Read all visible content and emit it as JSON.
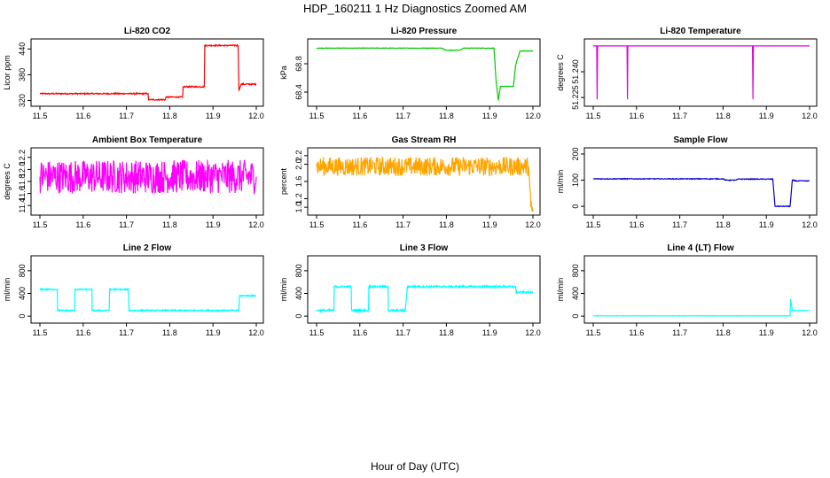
{
  "figure": {
    "title": "HDP_160211  1 Hz Diagnostics Zoomed AM",
    "xlabel": "Hour of Day (UTC)"
  },
  "chart_data": [
    {
      "type": "line",
      "title": "Li-820 CO2",
      "ylabel": "Licor ppm",
      "color": "#ff0000",
      "xlim": [
        11.5,
        12.0
      ],
      "ylim": [
        315,
        455
      ],
      "yticks": [
        "320",
        "380",
        "440"
      ],
      "xticks": [
        "11.5",
        "11.6",
        "11.7",
        "11.8",
        "11.9",
        "12.0"
      ],
      "series": [
        {
          "x": [
            11.5,
            11.75,
            11.751,
            11.79,
            11.791,
            11.83,
            11.831,
            11.88,
            11.881,
            11.958,
            11.96,
            11.965,
            12.0
          ],
          "y": [
            336,
            336,
            322,
            322,
            328,
            328,
            352,
            352,
            448,
            448,
            344,
            358,
            358
          ]
        }
      ],
      "noise": 1.5
    },
    {
      "type": "line",
      "title": "Li-820 Pressure",
      "ylabel": "kPa",
      "color": "#00cc00",
      "xlim": [
        11.5,
        12.0
      ],
      "ylim": [
        68.25,
        69.1
      ],
      "yticks": [
        "68.4",
        "68.8"
      ],
      "xticks": [
        "11.5",
        "11.6",
        "11.7",
        "11.8",
        "11.9",
        "12.0"
      ],
      "series": [
        {
          "x": [
            11.5,
            11.79,
            11.8,
            11.83,
            11.84,
            11.91,
            11.915,
            11.92,
            11.925,
            11.955,
            11.96,
            11.97,
            12.0
          ],
          "y": [
            69.02,
            69.02,
            68.99,
            68.99,
            69.02,
            69.02,
            68.55,
            68.28,
            68.48,
            68.48,
            68.78,
            68.98,
            68.98
          ]
        }
      ],
      "noise": 0.004
    },
    {
      "type": "line",
      "title": "Li-820 Temperature",
      "ylabel": "degrees C",
      "color": "#dd00dd",
      "xlim": [
        11.5,
        12.0
      ],
      "ylim": [
        51.222,
        51.257
      ],
      "yticks": [
        "51.225",
        "51.240"
      ],
      "xticks": [
        "11.5",
        "11.6",
        "11.7",
        "11.8",
        "11.9",
        "12.0"
      ],
      "series": [
        {
          "x": [
            11.5,
            11.508,
            11.509,
            11.51,
            11.578,
            11.579,
            11.58,
            11.868,
            11.869,
            11.87,
            12.0
          ],
          "y": [
            51.255,
            51.255,
            51.224,
            51.255,
            51.255,
            51.224,
            51.255,
            51.255,
            51.224,
            51.255,
            51.255
          ]
        }
      ],
      "noise": 0
    },
    {
      "type": "line",
      "title": "Ambient Box Temperature",
      "ylabel": "degrees C",
      "color": "#ff00ff",
      "xlim": [
        11.5,
        12.0
      ],
      "ylim": [
        11.3,
        12.3
      ],
      "yticks": [
        "11.4",
        "11.6",
        "11.8",
        "12.0",
        "12.2"
      ],
      "xticks": [
        "11.5",
        "11.6",
        "11.7",
        "11.8",
        "11.9",
        "12.0"
      ],
      "series": [
        {
          "x": [
            11.5,
            12.0
          ],
          "y": [
            11.88,
            11.88
          ]
        }
      ],
      "noise": 0.28
    },
    {
      "type": "line",
      "title": "Gas Stream RH",
      "ylabel": "percent",
      "color": "#ffa500",
      "xlim": [
        11.5,
        12.0
      ],
      "ylim": [
        0.9,
        2.3
      ],
      "yticks": [
        "1.0",
        "1.2",
        "1.6",
        "2.0",
        "2.2"
      ],
      "xticks": [
        "11.5",
        "11.6",
        "11.7",
        "11.8",
        "11.9",
        "12.0"
      ],
      "series": [
        {
          "x": [
            11.5,
            11.99,
            11.995,
            12.0
          ],
          "y": [
            1.95,
            1.95,
            1.0,
            0.9
          ]
        }
      ],
      "noise": 0.22
    },
    {
      "type": "line",
      "title": "Sample Flow",
      "ylabel": "ml/min",
      "color": "#0000cc",
      "xlim": [
        11.5,
        12.0
      ],
      "ylim": [
        -20,
        210
      ],
      "yticks": [
        "0",
        "100",
        "200"
      ],
      "xticks": [
        "11.5",
        "11.6",
        "11.7",
        "11.8",
        "11.9",
        "12.0"
      ],
      "series": [
        {
          "x": [
            11.5,
            11.8,
            11.805,
            11.83,
            11.835,
            11.915,
            11.92,
            11.955,
            11.96,
            11.97,
            12.0
          ],
          "y": [
            105,
            105,
            100,
            100,
            104,
            104,
            0,
            0,
            100,
            97,
            97
          ]
        }
      ],
      "noise": 1.5
    },
    {
      "type": "line",
      "title": "Line 2 Flow",
      "ylabel": "ml/min",
      "color": "#00ffff",
      "xlim": [
        11.5,
        12.0
      ],
      "ylim": [
        -60,
        1000
      ],
      "yticks": [
        "0",
        "400",
        "800"
      ],
      "xticks": [
        "11.5",
        "11.6",
        "11.7",
        "11.8",
        "11.9",
        "12.0"
      ],
      "series": [
        {
          "x": [
            11.5,
            11.54,
            11.541,
            11.58,
            11.581,
            11.62,
            11.621,
            11.66,
            11.661,
            11.705,
            11.706,
            11.96,
            11.961,
            12.0
          ],
          "y": [
            470,
            470,
            100,
            100,
            470,
            470,
            100,
            100,
            470,
            470,
            100,
            100,
            360,
            360
          ]
        }
      ],
      "noise": 12
    },
    {
      "type": "line",
      "title": "Line 3 Flow",
      "ylabel": "ml/min",
      "color": "#00ffff",
      "xlim": [
        11.5,
        12.0
      ],
      "ylim": [
        -60,
        1000
      ],
      "yticks": [
        "0",
        "400",
        "800"
      ],
      "xticks": [
        "11.5",
        "11.6",
        "11.7",
        "11.8",
        "11.9",
        "12.0"
      ],
      "series": [
        {
          "x": [
            11.5,
            11.54,
            11.541,
            11.58,
            11.581,
            11.62,
            11.621,
            11.665,
            11.666,
            11.705,
            11.71,
            11.96,
            11.961,
            12.0
          ],
          "y": [
            100,
            100,
            520,
            520,
            100,
            100,
            520,
            520,
            100,
            100,
            520,
            520,
            420,
            420
          ]
        }
      ],
      "noise": 18
    },
    {
      "type": "line",
      "title": "Line 4 (LT) Flow",
      "ylabel": "ml/min",
      "color": "#00ffff",
      "xlim": [
        11.5,
        12.0
      ],
      "ylim": [
        -60,
        1000
      ],
      "yticks": [
        "0",
        "400",
        "800"
      ],
      "xticks": [
        "11.5",
        "11.6",
        "11.7",
        "11.8",
        "11.9",
        "12.0"
      ],
      "series": [
        {
          "x": [
            11.5,
            11.955,
            11.956,
            11.96,
            11.965,
            12.0
          ],
          "y": [
            5,
            5,
            300,
            100,
            100,
            100
          ]
        }
      ],
      "noise": 2
    }
  ]
}
